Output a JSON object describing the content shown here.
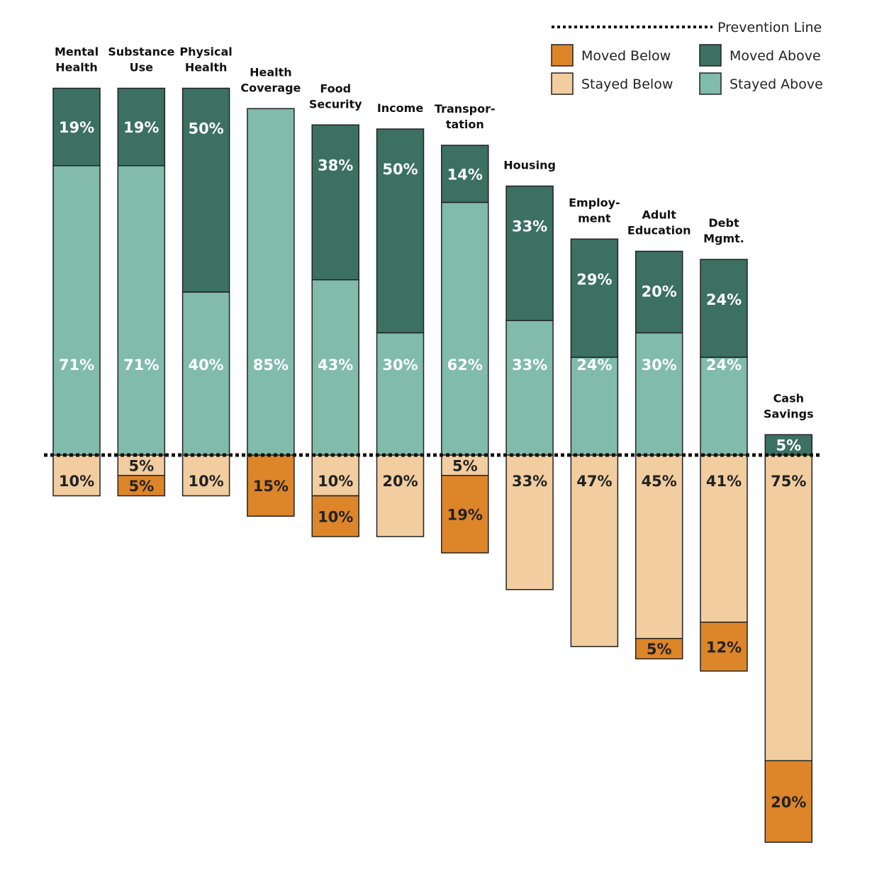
{
  "colors": {
    "moved_above": "#3b7062",
    "stayed_above": "#80bbab",
    "stayed_below": "#f1cda0",
    "moved_below": "#dd8529",
    "outline": "#222222",
    "prevention_line": "#111111",
    "label_light": "#ffffff",
    "label_dark": "#222222"
  },
  "chart_data": {
    "type": "bar",
    "stacked": "diverging",
    "baseline_label": "Prevention Line",
    "categories": [
      [
        "Mental",
        "Health"
      ],
      [
        "Substance",
        "Use"
      ],
      [
        "Physical",
        "Health"
      ],
      [
        "Health",
        "Coverage"
      ],
      [
        "Food",
        "Security"
      ],
      [
        "Income"
      ],
      [
        "Transpor-",
        "tation"
      ],
      [
        "Housing"
      ],
      [
        "Employ-",
        "ment"
      ],
      [
        "Adult",
        "Education"
      ],
      [
        "Debt",
        "Mgmt."
      ],
      [
        "Cash",
        "Savings"
      ]
    ],
    "series": [
      {
        "name": "Moved Above",
        "key": "moved_above",
        "direction": "above",
        "values": [
          19,
          19,
          50,
          0,
          38,
          50,
          14,
          33,
          29,
          20,
          24,
          5
        ]
      },
      {
        "name": "Stayed Above",
        "key": "stayed_above",
        "direction": "above",
        "values": [
          71,
          71,
          40,
          85,
          43,
          30,
          62,
          33,
          24,
          30,
          24,
          0
        ]
      },
      {
        "name": "Stayed Below",
        "key": "stayed_below",
        "direction": "below",
        "values": [
          10,
          5,
          10,
          0,
          10,
          20,
          5,
          33,
          47,
          45,
          41,
          75
        ]
      },
      {
        "name": "Moved Below",
        "key": "moved_below",
        "direction": "below",
        "values": [
          0,
          5,
          0,
          15,
          10,
          0,
          19,
          0,
          0,
          5,
          12,
          20
        ]
      }
    ],
    "legend_order": [
      "moved_below",
      "moved_above",
      "stayed_below",
      "stayed_above"
    ],
    "legend_position": "top-right"
  }
}
